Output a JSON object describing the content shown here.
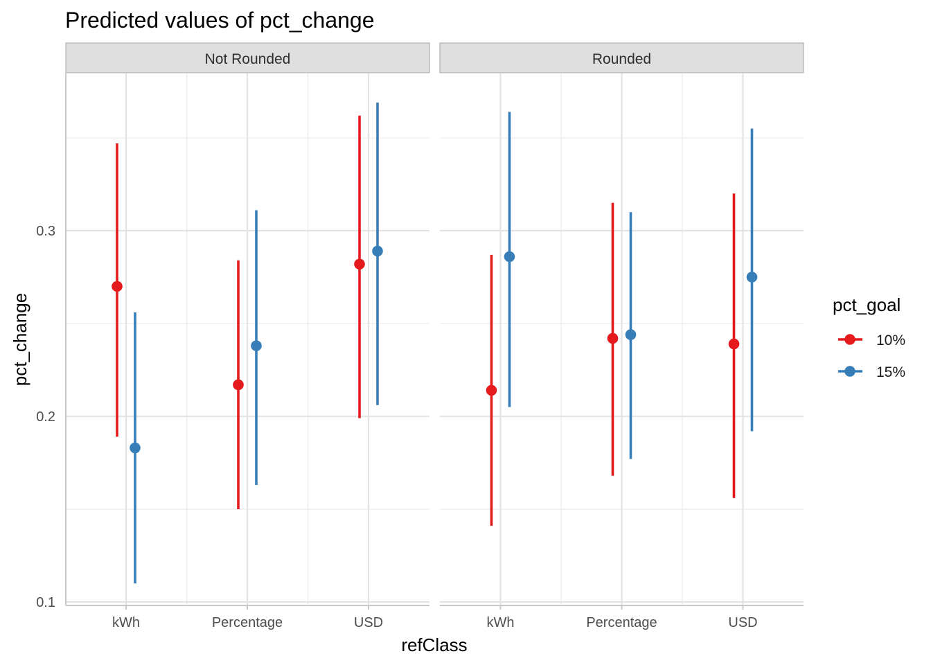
{
  "chart_data": {
    "type": "scatter",
    "variant": "point-range",
    "title": "Predicted values of pct_change",
    "xlabel": "refClass",
    "ylabel": "pct_change",
    "categories": [
      "kWh",
      "Percentage",
      "USD"
    ],
    "ylim": [
      0.1,
      0.37
    ],
    "yticks": [
      0.1,
      0.2,
      0.3
    ],
    "grid": true,
    "legend": {
      "title": "pct_goal",
      "position": "right"
    },
    "series_colors": {
      "10%": "#E41A1C",
      "15%": "#377EB8"
    },
    "panels": [
      {
        "label": "Not Rounded",
        "series": [
          {
            "name": "10%",
            "values": [
              0.27,
              0.217,
              0.282
            ],
            "lower": [
              0.189,
              0.15,
              0.199
            ],
            "upper": [
              0.347,
              0.284,
              0.362
            ]
          },
          {
            "name": "15%",
            "values": [
              0.183,
              0.238,
              0.289
            ],
            "lower": [
              0.11,
              0.163,
              0.206
            ],
            "upper": [
              0.256,
              0.311,
              0.369
            ]
          }
        ]
      },
      {
        "label": "Rounded",
        "series": [
          {
            "name": "10%",
            "values": [
              0.214,
              0.242,
              0.239
            ],
            "lower": [
              0.141,
              0.168,
              0.156
            ],
            "upper": [
              0.287,
              0.315,
              0.32
            ]
          },
          {
            "name": "15%",
            "values": [
              0.286,
              0.244,
              0.275
            ],
            "lower": [
              0.205,
              0.177,
              0.192
            ],
            "upper": [
              0.364,
              0.31,
              0.355
            ]
          }
        ]
      }
    ]
  }
}
